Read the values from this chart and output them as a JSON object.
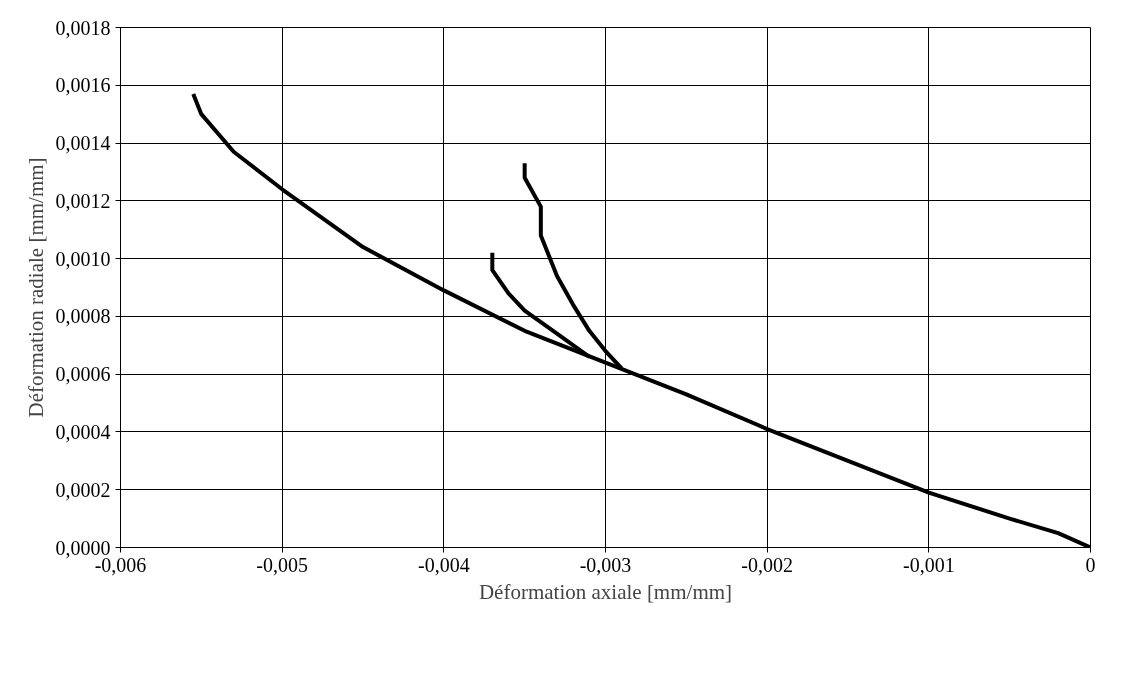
{
  "chart_data": {
    "type": "line",
    "xlabel": "Déformation axiale [mm/mm]",
    "ylabel": "Déformation radiale [mm/mm]",
    "series": [
      {
        "color": "#000000",
        "x": [
          0,
          -0.0002,
          -0.0005,
          -0.001,
          -0.0015,
          -0.002,
          -0.0025,
          -0.003,
          -0.0035,
          -0.004,
          -0.0045,
          -0.005,
          -0.0053,
          -0.0055,
          -0.00555
        ],
        "values": [
          0,
          5e-05,
          0.0001,
          0.00019,
          0.0003,
          0.00041,
          0.00053,
          0.00064,
          0.00075,
          0.00089,
          0.00104,
          0.00124,
          0.00137,
          0.0015,
          0.00157
        ]
      },
      {
        "color": "#000000",
        "x": [
          -0.0031,
          -0.0033,
          -0.0035,
          -0.0036,
          -0.0037,
          -0.0037
        ],
        "values": [
          0.00066,
          0.00074,
          0.00082,
          0.00088,
          0.00096,
          0.00102
        ]
      },
      {
        "color": "#000000",
        "x": [
          -0.0029,
          -0.003,
          -0.0031,
          -0.0032,
          -0.0033,
          -0.0034,
          -0.0034,
          -0.0035,
          -0.0035
        ],
        "values": [
          0.00062,
          0.00068,
          0.00075,
          0.00084,
          0.00094,
          0.00108,
          0.00118,
          0.00128,
          0.00133
        ]
      }
    ],
    "xlim": [
      -0.006,
      0
    ],
    "ylim": [
      0,
      0.0018
    ],
    "xticks": [
      {
        "value": -0.006,
        "label": "-0,006"
      },
      {
        "value": -0.005,
        "label": "-0,005"
      },
      {
        "value": -0.004,
        "label": "-0,004"
      },
      {
        "value": -0.003,
        "label": "-0,003"
      },
      {
        "value": -0.002,
        "label": "-0,002"
      },
      {
        "value": -0.001,
        "label": "-0,001"
      },
      0
    ],
    "yticks": [
      {
        "value": 0,
        "label": "0,0000"
      },
      {
        "value": 0.0002,
        "label": "0,0002"
      },
      {
        "value": 0.0004,
        "label": "0,0004"
      },
      {
        "value": 0.0006,
        "label": "0,0006"
      },
      {
        "value": 0.0008,
        "label": "0,0008"
      },
      {
        "value": 0.001,
        "label": "0,0010"
      },
      {
        "value": 0.0012,
        "label": "0,0012"
      },
      {
        "value": 0.0014,
        "label": "0,0014"
      },
      {
        "value": 0.0016,
        "label": "0,0016"
      },
      {
        "value": 0.0018,
        "label": "0,0018"
      }
    ],
    "grid": true,
    "marker": "none",
    "line_style": "solid"
  }
}
